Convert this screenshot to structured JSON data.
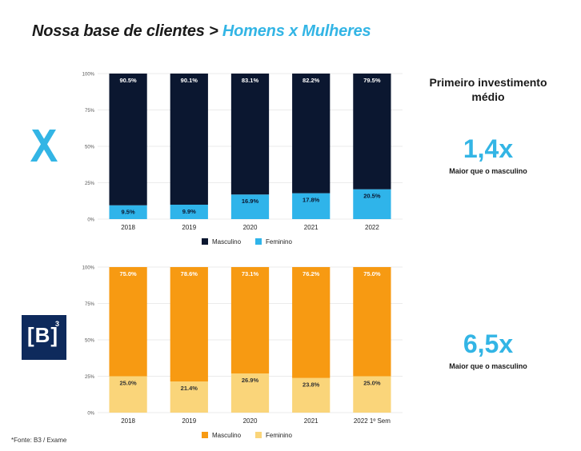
{
  "title": {
    "main": "Nossa base de clientes > ",
    "highlight": "Homens x Mulheres"
  },
  "colors": {
    "masculino_top": "#0b1730",
    "feminino_top": "#2fb4ea",
    "masculino_bottom": "#f79a12",
    "feminino_bottom": "#fad57a",
    "accent": "#33b5e5",
    "b3_logo_bg": "#0e2a5c"
  },
  "logos": {
    "top": "xp-logo",
    "bottom": "B3-logo",
    "bottom_text": "[B]",
    "bottom_sup": "3"
  },
  "panel_top": {
    "heading": "Primeiro investimento médio",
    "value": "1,4x",
    "note": "Maior que o masculino"
  },
  "panel_bottom": {
    "value": "6,5x",
    "note": "Maior que o masculino"
  },
  "source": "*Fonte: B3 / Exame",
  "chart_data": [
    {
      "type": "bar",
      "stacked": true,
      "categories": [
        "2018",
        "2019",
        "2020",
        "2021",
        "2022"
      ],
      "yticks": [
        "0%",
        "25%",
        "50%",
        "75%",
        "100%"
      ],
      "ylim": [
        0,
        100
      ],
      "series": [
        {
          "name": "Masculino",
          "values": [
            90.5,
            90.1,
            83.1,
            82.2,
            79.5
          ],
          "labels": [
            "90.5%",
            "90.1%",
            "83.1%",
            "82.2%",
            "79.5%"
          ]
        },
        {
          "name": "Feminino",
          "values": [
            9.5,
            9.9,
            16.9,
            17.8,
            20.5
          ],
          "labels": [
            "9.5%",
            "9.9%",
            "16.9%",
            "17.8%",
            "20.5%"
          ]
        }
      ],
      "legend": "bottom"
    },
    {
      "type": "bar",
      "stacked": true,
      "categories": [
        "2018",
        "2019",
        "2020",
        "2021",
        "2022 1º Sem"
      ],
      "yticks": [
        "0%",
        "25%",
        "50%",
        "75%",
        "100%"
      ],
      "ylim": [
        0,
        100
      ],
      "series": [
        {
          "name": "Masculino",
          "values": [
            75.0,
            78.6,
            73.1,
            76.2,
            75.0
          ],
          "labels": [
            "75.0%",
            "78.6%",
            "73.1%",
            "76.2%",
            "75.0%"
          ]
        },
        {
          "name": "Feminino",
          "values": [
            25.0,
            21.4,
            26.9,
            23.8,
            25.0
          ],
          "labels": [
            "25.0%",
            "21.4%",
            "26.9%",
            "23.8%",
            "25.0%"
          ]
        }
      ],
      "legend": "bottom"
    }
  ]
}
